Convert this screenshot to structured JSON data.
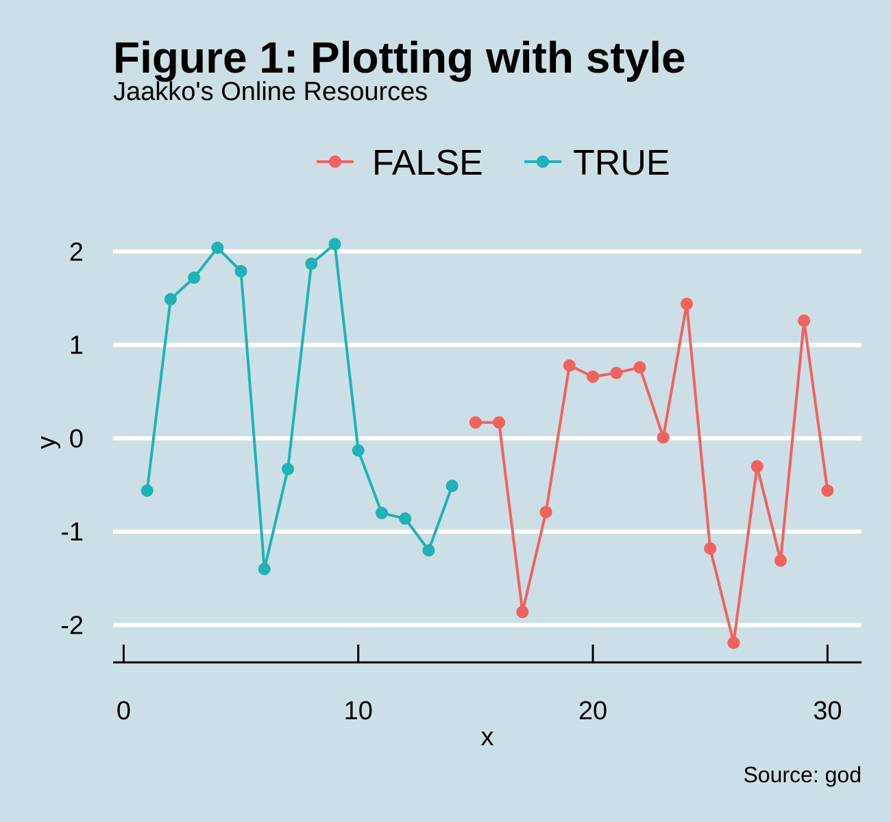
{
  "chart_data": {
    "type": "line",
    "title": "Figure 1: Plotting with style",
    "subtitle": "Jaakko's Online Resources",
    "caption": "Source: god",
    "xlabel": "x",
    "ylabel": "y",
    "xlim": [
      -0.45,
      31.45
    ],
    "ylim": [
      -2.4,
      2.2
    ],
    "xticks": [
      0,
      10,
      20,
      30
    ],
    "yticks": [
      -2,
      -1,
      0,
      1,
      2
    ],
    "grid": "horizontal major lines only",
    "legend_position": "top",
    "series": [
      {
        "name": "FALSE",
        "color": "#f0625f",
        "x": [
          15,
          16,
          17,
          18,
          19,
          20,
          21,
          22,
          23,
          24,
          25,
          26,
          27,
          28,
          29,
          30
        ],
        "y": [
          0.17,
          0.17,
          -1.86,
          -0.79,
          0.78,
          0.66,
          0.7,
          0.76,
          0.01,
          1.44,
          -1.18,
          -2.19,
          -0.3,
          -1.31,
          1.26,
          -0.56
        ]
      },
      {
        "name": "TRUE",
        "color": "#1fb2b6",
        "x": [
          1,
          2,
          3,
          4,
          5,
          6,
          7,
          8,
          9,
          10,
          11,
          12,
          13,
          14
        ],
        "y": [
          -0.56,
          1.49,
          1.72,
          2.04,
          1.79,
          -1.4,
          -0.33,
          1.87,
          2.08,
          -0.13,
          -0.8,
          -0.86,
          -1.2,
          -0.51
        ]
      }
    ]
  }
}
